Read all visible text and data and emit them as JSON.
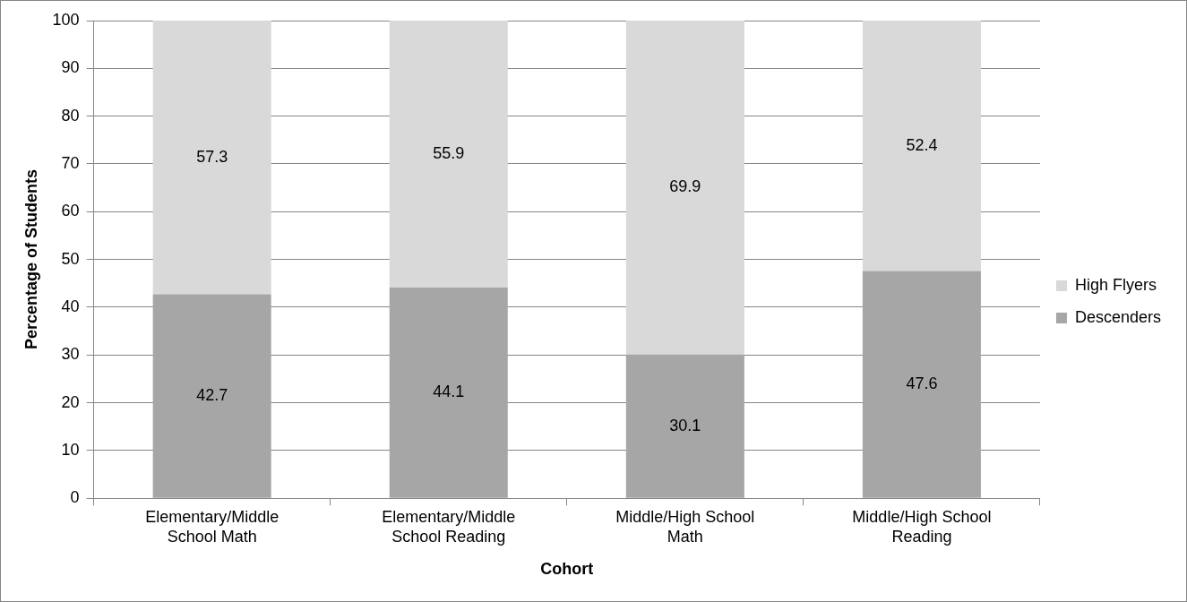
{
  "chart_data": {
    "type": "bar",
    "stacked": true,
    "xlabel": "Cohort",
    "ylabel": "Percentage of Students",
    "categories": [
      "Elementary/Middle School Math",
      "Elementary/Middle School Reading",
      "Middle/High School Math",
      "Middle/High School Reading"
    ],
    "series": [
      {
        "name": "Descenders",
        "color": "#a6a6a6",
        "values": [
          42.7,
          44.1,
          30.1,
          47.6
        ]
      },
      {
        "name": "High Flyers",
        "color": "#d9d9d9",
        "values": [
          57.3,
          55.9,
          69.9,
          52.4
        ]
      }
    ],
    "ylim": [
      0,
      100
    ],
    "yticks": [
      0,
      10,
      20,
      30,
      40,
      50,
      60,
      70,
      80,
      90,
      100
    ],
    "grid": "y",
    "legend": "right",
    "data_labels": true
  }
}
